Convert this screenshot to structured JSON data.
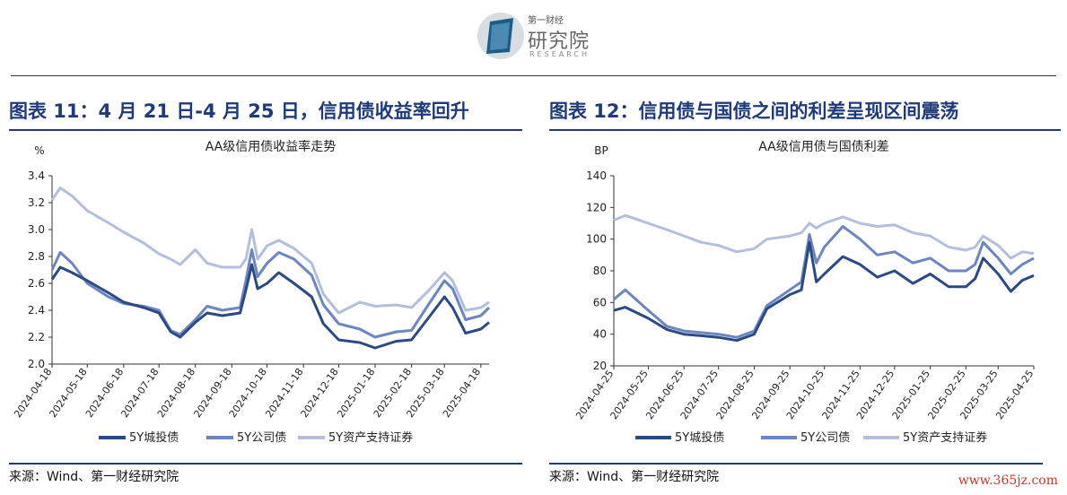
{
  "logo": {
    "top_text": "第一财经",
    "main_text": "研究院",
    "sub_text": "RESEARCH"
  },
  "figures": [
    {
      "title": "图表 11：4 月 21 日-4 月 25 日，信用债收益率回升",
      "source": "来源：Wind、第一财经研究院"
    },
    {
      "title": "图表 12：信用债与国债之间的利差呈现区间震荡",
      "source": "来源：Wind、第一财经研究院"
    }
  ],
  "watermark": "www.365jz.com",
  "colors": {
    "s1": "#2b4a83",
    "s2": "#6d86bf",
    "s3": "#b3bfdc",
    "accent": "#1f3a78"
  },
  "chart_data": [
    {
      "type": "line",
      "title": "AA级信用债收益率走势",
      "ylabel": "%",
      "ylim": [
        2.0,
        3.4
      ],
      "yticks": [
        "2.0",
        "2.2",
        "2.4",
        "2.6",
        "2.8",
        "3.0",
        "3.2",
        "3.4"
      ],
      "xticks": [
        "2024-04-18",
        "2024-05-18",
        "2024-06-18",
        "2024-07-18",
        "2024-08-18",
        "2024-09-18",
        "2024-10-18",
        "2024-11-18",
        "2024-12-18",
        "2025-01-18",
        "2025-02-18",
        "2025-03-18",
        "2025-04-18"
      ],
      "xlim": [
        "2024-04-18",
        "2025-04-25"
      ],
      "legend": "bottom",
      "series": [
        {
          "name": "5Y城投债",
          "color": "#2b4a83",
          "points": [
            [
              "2024-04-18",
              2.63
            ],
            [
              "2024-04-25",
              2.72
            ],
            [
              "2024-05-05",
              2.68
            ],
            [
              "2024-05-18",
              2.62
            ],
            [
              "2024-06-05",
              2.53
            ],
            [
              "2024-06-18",
              2.46
            ],
            [
              "2024-07-05",
              2.42
            ],
            [
              "2024-07-18",
              2.38
            ],
            [
              "2024-07-28",
              2.24
            ],
            [
              "2024-08-05",
              2.2
            ],
            [
              "2024-08-18",
              2.31
            ],
            [
              "2024-08-28",
              2.38
            ],
            [
              "2024-09-10",
              2.36
            ],
            [
              "2024-09-25",
              2.38
            ],
            [
              "2024-09-30",
              2.55
            ],
            [
              "2024-10-05",
              2.74
            ],
            [
              "2024-10-10",
              2.56
            ],
            [
              "2024-10-18",
              2.6
            ],
            [
              "2024-10-28",
              2.68
            ],
            [
              "2024-11-10",
              2.6
            ],
            [
              "2024-11-25",
              2.5
            ],
            [
              "2024-12-05",
              2.3
            ],
            [
              "2024-12-18",
              2.18
            ],
            [
              "2025-01-05",
              2.16
            ],
            [
              "2025-01-18",
              2.12
            ],
            [
              "2025-02-05",
              2.17
            ],
            [
              "2025-02-18",
              2.18
            ],
            [
              "2025-03-05",
              2.35
            ],
            [
              "2025-03-18",
              2.5
            ],
            [
              "2025-03-25",
              2.42
            ],
            [
              "2025-04-05",
              2.23
            ],
            [
              "2025-04-18",
              2.26
            ],
            [
              "2025-04-25",
              2.31
            ]
          ]
        },
        {
          "name": "5Y公司债",
          "color": "#6d86bf",
          "points": [
            [
              "2024-04-18",
              2.7
            ],
            [
              "2024-04-25",
              2.83
            ],
            [
              "2024-05-05",
              2.75
            ],
            [
              "2024-05-18",
              2.6
            ],
            [
              "2024-06-05",
              2.5
            ],
            [
              "2024-06-18",
              2.45
            ],
            [
              "2024-07-05",
              2.43
            ],
            [
              "2024-07-18",
              2.4
            ],
            [
              "2024-07-28",
              2.25
            ],
            [
              "2024-08-05",
              2.22
            ],
            [
              "2024-08-18",
              2.33
            ],
            [
              "2024-08-28",
              2.43
            ],
            [
              "2024-09-10",
              2.4
            ],
            [
              "2024-09-25",
              2.42
            ],
            [
              "2024-09-30",
              2.62
            ],
            [
              "2024-10-05",
              2.85
            ],
            [
              "2024-10-10",
              2.65
            ],
            [
              "2024-10-18",
              2.75
            ],
            [
              "2024-10-28",
              2.83
            ],
            [
              "2024-11-10",
              2.78
            ],
            [
              "2024-11-25",
              2.66
            ],
            [
              "2024-12-05",
              2.44
            ],
            [
              "2024-12-18",
              2.3
            ],
            [
              "2025-01-05",
              2.26
            ],
            [
              "2025-01-18",
              2.2
            ],
            [
              "2025-02-05",
              2.24
            ],
            [
              "2025-02-18",
              2.25
            ],
            [
              "2025-03-05",
              2.45
            ],
            [
              "2025-03-18",
              2.62
            ],
            [
              "2025-03-25",
              2.56
            ],
            [
              "2025-04-05",
              2.33
            ],
            [
              "2025-04-18",
              2.36
            ],
            [
              "2025-04-25",
              2.42
            ]
          ]
        },
        {
          "name": "5Y资产支持证券",
          "color": "#b3bfdc",
          "points": [
            [
              "2024-04-18",
              3.22
            ],
            [
              "2024-04-25",
              3.31
            ],
            [
              "2024-05-05",
              3.25
            ],
            [
              "2024-05-18",
              3.14
            ],
            [
              "2024-06-05",
              3.05
            ],
            [
              "2024-06-18",
              2.98
            ],
            [
              "2024-07-05",
              2.9
            ],
            [
              "2024-07-18",
              2.82
            ],
            [
              "2024-07-28",
              2.78
            ],
            [
              "2024-08-05",
              2.74
            ],
            [
              "2024-08-18",
              2.85
            ],
            [
              "2024-08-28",
              2.75
            ],
            [
              "2024-09-10",
              2.72
            ],
            [
              "2024-09-25",
              2.72
            ],
            [
              "2024-09-30",
              2.78
            ],
            [
              "2024-10-05",
              3.0
            ],
            [
              "2024-10-10",
              2.78
            ],
            [
              "2024-10-18",
              2.88
            ],
            [
              "2024-10-28",
              2.92
            ],
            [
              "2024-11-10",
              2.86
            ],
            [
              "2024-11-25",
              2.75
            ],
            [
              "2024-12-05",
              2.52
            ],
            [
              "2024-12-18",
              2.38
            ],
            [
              "2025-01-05",
              2.46
            ],
            [
              "2025-01-18",
              2.43
            ],
            [
              "2025-02-05",
              2.44
            ],
            [
              "2025-02-18",
              2.42
            ],
            [
              "2025-03-05",
              2.55
            ],
            [
              "2025-03-18",
              2.68
            ],
            [
              "2025-03-25",
              2.62
            ],
            [
              "2025-04-05",
              2.4
            ],
            [
              "2025-04-18",
              2.42
            ],
            [
              "2025-04-25",
              2.46
            ]
          ]
        }
      ]
    },
    {
      "type": "line",
      "title": "AA级信用债与国债利差",
      "ylabel": "BP",
      "ylim": [
        20,
        140
      ],
      "yticks": [
        "20",
        "40",
        "60",
        "80",
        "100",
        "120",
        "140"
      ],
      "xticks": [
        "2024-04-25",
        "2024-05-25",
        "2024-06-25",
        "2024-07-25",
        "2024-08-25",
        "2024-09-25",
        "2024-10-25",
        "2024-11-25",
        "2024-12-25",
        "2025-01-25",
        "2025-02-25",
        "2025-03-25",
        "2025-04-25"
      ],
      "xlim": [
        "2024-04-25",
        "2025-04-25"
      ],
      "legend": "bottom",
      "series": [
        {
          "name": "5Y城投债",
          "color": "#2b4a83",
          "points": [
            [
              "2024-04-25",
              55
            ],
            [
              "2024-05-05",
              57
            ],
            [
              "2024-05-25",
              50
            ],
            [
              "2024-06-10",
              43
            ],
            [
              "2024-06-25",
              40
            ],
            [
              "2024-07-10",
              39
            ],
            [
              "2024-07-25",
              38
            ],
            [
              "2024-08-10",
              36
            ],
            [
              "2024-08-25",
              40
            ],
            [
              "2024-09-05",
              56
            ],
            [
              "2024-09-25",
              65
            ],
            [
              "2024-10-05",
              68
            ],
            [
              "2024-10-12",
              98
            ],
            [
              "2024-10-18",
              73
            ],
            [
              "2024-10-25",
              78
            ],
            [
              "2024-11-10",
              89
            ],
            [
              "2024-11-25",
              84
            ],
            [
              "2024-12-10",
              76
            ],
            [
              "2024-12-25",
              80
            ],
            [
              "2025-01-10",
              72
            ],
            [
              "2025-01-25",
              78
            ],
            [
              "2025-02-10",
              70
            ],
            [
              "2025-02-25",
              70
            ],
            [
              "2025-03-05",
              75
            ],
            [
              "2025-03-12",
              88
            ],
            [
              "2025-03-25",
              78
            ],
            [
              "2025-04-05",
              67
            ],
            [
              "2025-04-15",
              74
            ],
            [
              "2025-04-25",
              77
            ]
          ]
        },
        {
          "name": "5Y公司债",
          "color": "#6d86bf",
          "points": [
            [
              "2024-04-25",
              62
            ],
            [
              "2024-05-05",
              68
            ],
            [
              "2024-05-25",
              55
            ],
            [
              "2024-06-10",
              45
            ],
            [
              "2024-06-25",
              42
            ],
            [
              "2024-07-10",
              41
            ],
            [
              "2024-07-25",
              40
            ],
            [
              "2024-08-10",
              38
            ],
            [
              "2024-08-25",
              42
            ],
            [
              "2024-09-05",
              58
            ],
            [
              "2024-09-25",
              68
            ],
            [
              "2024-10-05",
              73
            ],
            [
              "2024-10-12",
              103
            ],
            [
              "2024-10-18",
              85
            ],
            [
              "2024-10-25",
              95
            ],
            [
              "2024-11-10",
              108
            ],
            [
              "2024-11-25",
              100
            ],
            [
              "2024-12-10",
              90
            ],
            [
              "2024-12-25",
              92
            ],
            [
              "2025-01-10",
              85
            ],
            [
              "2025-01-25",
              88
            ],
            [
              "2025-02-10",
              80
            ],
            [
              "2025-02-25",
              80
            ],
            [
              "2025-03-05",
              84
            ],
            [
              "2025-03-12",
              98
            ],
            [
              "2025-03-25",
              88
            ],
            [
              "2025-04-05",
              78
            ],
            [
              "2025-04-15",
              84
            ],
            [
              "2025-04-25",
              88
            ]
          ]
        },
        {
          "name": "5Y资产支持证券",
          "color": "#b3bfdc",
          "points": [
            [
              "2024-04-25",
              112
            ],
            [
              "2024-05-05",
              115
            ],
            [
              "2024-05-25",
              110
            ],
            [
              "2024-06-10",
              106
            ],
            [
              "2024-06-25",
              102
            ],
            [
              "2024-07-10",
              98
            ],
            [
              "2024-07-25",
              96
            ],
            [
              "2024-08-10",
              92
            ],
            [
              "2024-08-25",
              94
            ],
            [
              "2024-09-05",
              100
            ],
            [
              "2024-09-25",
              102
            ],
            [
              "2024-10-05",
              104
            ],
            [
              "2024-10-12",
              110
            ],
            [
              "2024-10-18",
              107
            ],
            [
              "2024-10-25",
              110
            ],
            [
              "2024-11-10",
              114
            ],
            [
              "2024-11-25",
              110
            ],
            [
              "2024-12-10",
              108
            ],
            [
              "2024-12-25",
              109
            ],
            [
              "2025-01-10",
              104
            ],
            [
              "2025-01-25",
              102
            ],
            [
              "2025-02-10",
              95
            ],
            [
              "2025-02-25",
              93
            ],
            [
              "2025-03-05",
              95
            ],
            [
              "2025-03-12",
              102
            ],
            [
              "2025-03-25",
              96
            ],
            [
              "2025-04-05",
              88
            ],
            [
              "2025-04-15",
              92
            ],
            [
              "2025-04-25",
              91
            ]
          ]
        }
      ]
    }
  ]
}
